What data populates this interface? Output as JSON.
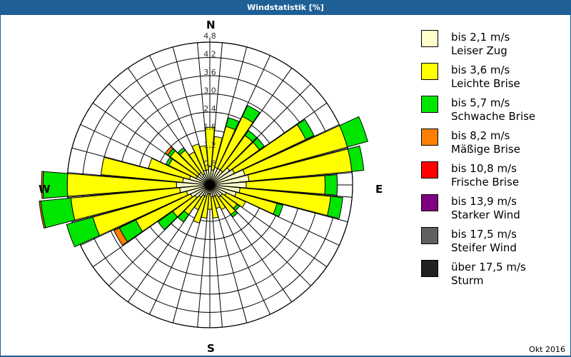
{
  "window": {
    "title": "Windstatistik [%]"
  },
  "footer": {
    "date": "Okt 2016"
  },
  "directions": {
    "n": "N",
    "e": "E",
    "s": "S",
    "w": "W"
  },
  "legend": [
    {
      "speed": "bis 2,1 m/s",
      "name": "Leiser Zug",
      "color": "#ffffcc"
    },
    {
      "speed": "bis 3,6 m/s",
      "name": "Leichte Brise",
      "color": "#ffff00"
    },
    {
      "speed": "bis 5,7 m/s",
      "name": "Schwache Brise",
      "color": "#00e600"
    },
    {
      "speed": "bis 8,2 m/s",
      "name": "Mäßige Brise",
      "color": "#ff8000"
    },
    {
      "speed": "bis 10,8 m/s",
      "name": "Frische Brise",
      "color": "#ff0000"
    },
    {
      "speed": "bis 13,9 m/s",
      "name": "Starker Wind",
      "color": "#800080"
    },
    {
      "speed": "bis 17,5 m/s",
      "name": "Steifer Wind",
      "color": "#606060"
    },
    {
      "speed": "über 17,5 m/s",
      "name": "Sturm",
      "color": "#202020"
    }
  ],
  "chart_data": {
    "type": "polar-bar (wind rose)",
    "title": "Windstatistik [%]",
    "date": "Okt 2016",
    "radial_ticks": [
      "0,6",
      "1,2",
      "1,8",
      "2,4",
      "3,0",
      "3,6",
      "4,2",
      "4,8"
    ],
    "radial_unit": "%",
    "sector_width_deg": 10,
    "directions_deg": [
      0,
      10,
      20,
      30,
      40,
      50,
      60,
      70,
      80,
      90,
      100,
      110,
      120,
      130,
      140,
      150,
      160,
      170,
      180,
      190,
      200,
      210,
      220,
      230,
      240,
      250,
      260,
      270,
      280,
      290,
      300,
      310,
      320,
      330,
      340,
      350
    ],
    "series": [
      {
        "name": "bis 2,1 m/s",
        "values": [
          0.6,
          0.5,
          0.6,
          0.6,
          0.6,
          0.8,
          0.9,
          1.2,
          1.3,
          1.2,
          1.0,
          0.9,
          0.6,
          0.5,
          0.5,
          0.4,
          0.4,
          0.4,
          0.3,
          0.3,
          0.4,
          0.4,
          0.5,
          0.6,
          0.7,
          0.8,
          1.0,
          1.1,
          0.9,
          0.7,
          0.5,
          0.5,
          0.5,
          0.4,
          0.5,
          0.5
        ]
      },
      {
        "name": "bis 3,6 m/s",
        "values": [
          1.3,
          1.1,
          1.4,
          1.9,
          1.4,
          1.2,
          2.6,
          3.5,
          3.4,
          2.6,
          3.0,
          1.4,
          0.7,
          0.6,
          0.7,
          0.5,
          0.4,
          0.7,
          0.5,
          0.8,
          0.9,
          0.5,
          0.7,
          0.9,
          2.0,
          3.2,
          3.6,
          3.6,
          2.7,
          1.4,
          1.0,
          1.1,
          0.9,
          0.8,
          0.9,
          0.8
        ]
      },
      {
        "name": "bis 5,7 m/s",
        "values": [
          0.0,
          0.0,
          0.3,
          0.4,
          0.2,
          0.2,
          0.3,
          0.7,
          0.4,
          0.4,
          0.4,
          0.2,
          0.0,
          0.1,
          0.1,
          0.0,
          0.0,
          0.0,
          0.0,
          0.0,
          0.0,
          0.0,
          0.3,
          0.6,
          0.6,
          0.9,
          1.0,
          0.8,
          0.0,
          0.0,
          0.1,
          0.1,
          0.1,
          0.0,
          0.0,
          0.0
        ]
      },
      {
        "name": "bis 8,2 m/s",
        "values": [
          0,
          0,
          0,
          0,
          0,
          0,
          0,
          0,
          0,
          0,
          0,
          0,
          0,
          0,
          0,
          0,
          0,
          0,
          0,
          0,
          0,
          0,
          0,
          0,
          0.2,
          0,
          0.05,
          0.05,
          0,
          0,
          0,
          0.1,
          0,
          0,
          0,
          0
        ]
      }
    ],
    "legend_position": "right"
  }
}
